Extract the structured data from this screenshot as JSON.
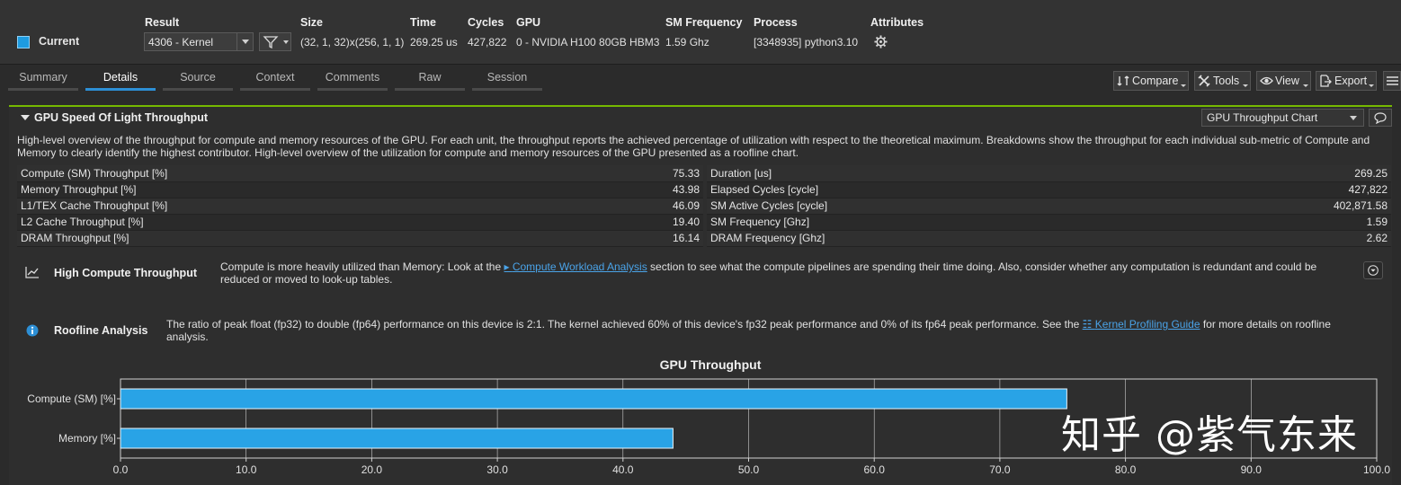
{
  "topbar": {
    "headers": {
      "result": "Result",
      "size": "Size",
      "time": "Time",
      "cycles": "Cycles",
      "gpu": "GPU",
      "sm_frequency": "SM Frequency",
      "process": "Process",
      "attributes": "Attributes"
    },
    "current_label": "Current",
    "current_color": "#1e9be0",
    "result_value": "4306 - Kernel",
    "size_value": "(32, 1, 32)x(256, 1, 1)",
    "time_value": "269.25 us",
    "cycles_value": "427,822",
    "gpu_value": "0 - NVIDIA H100 80GB HBM3",
    "sm_frequency_value": "1.59 Ghz",
    "process_value": "[3348935] python3.10",
    "attributes_icon": "gear-icon",
    "filter_icon": "filter-icon"
  },
  "tabs": [
    {
      "label": "Summary",
      "active": false
    },
    {
      "label": "Details",
      "active": true
    },
    {
      "label": "Source",
      "active": false
    },
    {
      "label": "Context",
      "active": false
    },
    {
      "label": "Comments",
      "active": false
    },
    {
      "label": "Raw",
      "active": false
    },
    {
      "label": "Session",
      "active": false
    }
  ],
  "toolbar": {
    "compare": "Compare",
    "tools": "Tools",
    "view": "View",
    "export": "Export",
    "menu_icon": "hamburger-icon"
  },
  "section": {
    "title": "GPU Speed Of Light Throughput",
    "chart_select": "GPU Throughput Chart",
    "accent": "#76b900",
    "description": "High-level overview of the throughput for compute and memory resources of the GPU. For each unit, the throughput reports the achieved percentage of utilization with respect to the theoretical maximum. Breakdowns show the throughput for each individual sub-metric of Compute and Memory to clearly identify the highest contributor. High-level overview of the utilization for compute and memory resources of the GPU presented as a roofline chart."
  },
  "metrics_left": [
    {
      "name": "Compute (SM) Throughput [%]",
      "value": "75.33"
    },
    {
      "name": "Memory Throughput [%]",
      "value": "43.98"
    },
    {
      "name": "L1/TEX Cache Throughput [%]",
      "value": "46.09"
    },
    {
      "name": "L2 Cache Throughput [%]",
      "value": "19.40"
    },
    {
      "name": "DRAM Throughput [%]",
      "value": "16.14"
    }
  ],
  "metrics_right": [
    {
      "name": "Duration [us]",
      "value": "269.25"
    },
    {
      "name": "Elapsed Cycles [cycle]",
      "value": "427,822"
    },
    {
      "name": "SM Active Cycles [cycle]",
      "value": "402,871.58"
    },
    {
      "name": "SM Frequency [Ghz]",
      "value": "1.59"
    },
    {
      "name": "DRAM Frequency [Ghz]",
      "value": "2.62"
    }
  ],
  "rules": {
    "compute": {
      "title": "High Compute Throughput",
      "icon": "chart-line-icon",
      "text_before": "Compute is more heavily utilized than Memory: Look at the ",
      "link": "Compute Workload Analysis",
      "text_after": " section to see what the compute pipelines are spending their time doing. Also, consider whether any computation is redundant and could be reduced or moved to look-up tables."
    },
    "roofline": {
      "title": "Roofline Analysis",
      "icon": "info-icon",
      "text_before": "The ratio of peak float (fp32) to double (fp64) performance on this device is 2:1. The kernel achieved 60% of this device's fp32 peak performance and 0% of its fp64 peak performance. See the ",
      "link": "Kernel Profiling Guide",
      "text_after": " for more details on roofline analysis."
    }
  },
  "chart_data": {
    "type": "bar",
    "orientation": "horizontal",
    "title": "GPU Throughput",
    "categories": [
      "Compute (SM) [%]",
      "Memory [%]"
    ],
    "values": [
      75.33,
      43.98
    ],
    "xlim": [
      0,
      100
    ],
    "xticks": [
      "0.0",
      "10.0",
      "20.0",
      "30.0",
      "40.0",
      "50.0",
      "60.0",
      "70.0",
      "80.0",
      "90.0",
      "100.0"
    ],
    "grid": true,
    "bar_color": "#29a3e6"
  },
  "watermark": "知乎 @紫气东来"
}
